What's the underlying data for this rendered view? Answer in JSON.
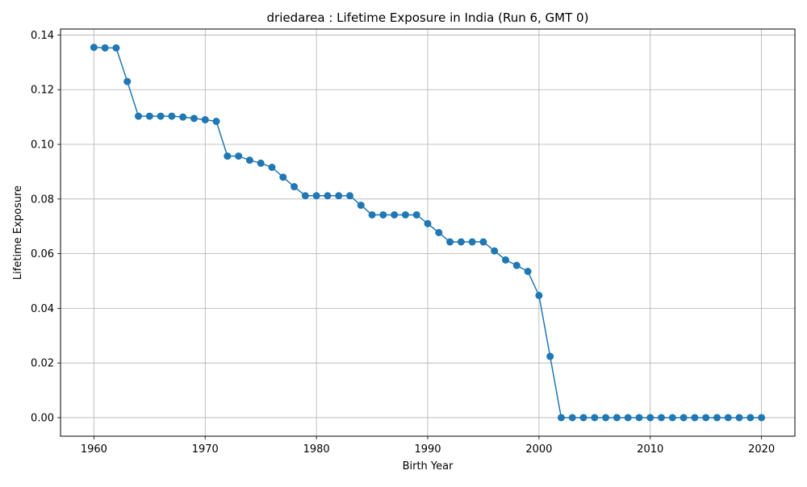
{
  "chart_data": {
    "type": "line",
    "title": "driedarea : Lifetime Exposure in India (Run 6, GMT 0)",
    "xlabel": "Birth Year",
    "ylabel": "Lifetime Exposure",
    "xlim": [
      1957,
      2023
    ],
    "ylim": [
      -0.0068,
      0.1422
    ],
    "xticks": [
      1960,
      1970,
      1980,
      1990,
      2000,
      2010,
      2020
    ],
    "yticks": [
      0.0,
      0.02,
      0.04,
      0.06,
      0.08,
      0.1,
      0.12,
      0.14
    ],
    "ytick_labels": [
      "0.00",
      "0.02",
      "0.04",
      "0.06",
      "0.08",
      "0.10",
      "0.12",
      "0.14"
    ],
    "grid": true,
    "color": "#1f77b4",
    "marker": "circle",
    "series": [
      {
        "x": [
          1960,
          1961,
          1962,
          1963,
          1964,
          1965,
          1966,
          1967,
          1968,
          1969,
          1970,
          1971,
          1972,
          1973,
          1974,
          1975,
          1976,
          1977,
          1978,
          1979,
          1980,
          1981,
          1982,
          1983,
          1984,
          1985,
          1986,
          1987,
          1988,
          1989,
          1990,
          1991,
          1992,
          1993,
          1994,
          1995,
          1996,
          1997,
          1998,
          1999,
          2000,
          2001,
          2002,
          2003,
          2004,
          2005,
          2006,
          2007,
          2008,
          2009,
          2010,
          2011,
          2012,
          2013,
          2014,
          2015,
          2016,
          2017,
          2018,
          2019,
          2020
        ],
        "values": [
          0.1355,
          0.1353,
          0.1353,
          0.123,
          0.1103,
          0.1103,
          0.1103,
          0.1103,
          0.11,
          0.1095,
          0.109,
          0.1084,
          0.0957,
          0.0957,
          0.0942,
          0.0931,
          0.0916,
          0.088,
          0.0845,
          0.0812,
          0.0812,
          0.0812,
          0.0812,
          0.0812,
          0.0777,
          0.0742,
          0.0742,
          0.0742,
          0.0742,
          0.0742,
          0.071,
          0.0677,
          0.0643,
          0.0643,
          0.0643,
          0.0643,
          0.061,
          0.0577,
          0.0557,
          0.0535,
          0.0447,
          0.0224,
          0.0,
          0.0,
          0.0,
          0.0,
          0.0,
          0.0,
          0.0,
          0.0,
          0.0,
          0.0,
          0.0,
          0.0,
          0.0,
          0.0,
          0.0,
          0.0,
          0.0,
          0.0,
          0.0
        ]
      }
    ]
  }
}
